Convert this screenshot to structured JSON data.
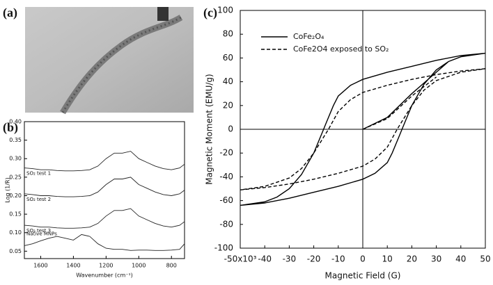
{
  "panel_labels": [
    "(a)",
    "(b)",
    "(c)"
  ],
  "chart_data": [
    {
      "type": "line",
      "x_label": "Wavenumber (cm⁻¹)",
      "y_label": "Log (1/R)",
      "x": [
        1700,
        1650,
        1600,
        1550,
        1500,
        1450,
        1400,
        1350,
        1300,
        1250,
        1200,
        1150,
        1100,
        1050,
        1000,
        950,
        900,
        850,
        800,
        750,
        720
      ],
      "xlim": [
        1700,
        720
      ],
      "xticks": [
        1600,
        1400,
        1200,
        1000,
        800
      ],
      "ylim": [
        0.03,
        0.4
      ],
      "yticks": [
        0.05,
        {
          "value": 0.1,
          "label": "0.10"
        },
        0.15,
        {
          "value": 0.2,
          "label": "0.20"
        },
        0.25,
        {
          "value": 0.3,
          "label": "0.30"
        },
        0.35,
        {
          "value": 0.4,
          "label": "0.40"
        }
      ],
      "series": [
        {
          "name": "SO₂ test 1",
          "color": "#222",
          "values": [
            0.275,
            0.273,
            0.27,
            0.27,
            0.268,
            0.267,
            0.267,
            0.268,
            0.27,
            0.28,
            0.3,
            0.315,
            0.315,
            0.32,
            0.3,
            0.29,
            0.28,
            0.273,
            0.27,
            0.275,
            0.285
          ]
        },
        {
          "name": "SO₂ test 2",
          "color": "#222",
          "values": [
            0.205,
            0.203,
            0.2,
            0.2,
            0.198,
            0.197,
            0.197,
            0.198,
            0.2,
            0.21,
            0.23,
            0.245,
            0.245,
            0.25,
            0.23,
            0.22,
            0.21,
            0.203,
            0.2,
            0.205,
            0.215
          ]
        },
        {
          "name": "SO₂ test 3",
          "color": "#222",
          "values": [
            0.12,
            0.118,
            0.115,
            0.115,
            0.113,
            0.112,
            0.112,
            0.113,
            0.115,
            0.125,
            0.145,
            0.16,
            0.16,
            0.165,
            0.145,
            0.135,
            0.125,
            0.118,
            0.115,
            0.12,
            0.13
          ]
        },
        {
          "name": "Native MNPs",
          "color": "#222",
          "values": [
            0.065,
            0.07,
            0.078,
            0.085,
            0.09,
            0.085,
            0.08,
            0.095,
            0.09,
            0.07,
            0.058,
            0.055,
            0.055,
            0.052,
            0.053,
            0.053,
            0.052,
            0.052,
            0.053,
            0.055,
            0.07
          ]
        }
      ]
    },
    {
      "type": "line",
      "x_label": "Magnetic Field (G)",
      "y_label": "Magnetic Moment (EMU/g)",
      "xlim": [
        -50000,
        50000
      ],
      "xticks": [
        {
          "value": -50000,
          "label": "-50x10³"
        },
        {
          "value": -40000,
          "label": "-40"
        },
        {
          "value": -30000,
          "label": "-30"
        },
        {
          "value": -20000,
          "label": "-20"
        },
        {
          "value": -10000,
          "label": "-10"
        },
        0,
        {
          "value": 10000,
          "label": "10"
        },
        {
          "value": 20000,
          "label": "20"
        },
        {
          "value": 30000,
          "label": "30"
        },
        {
          "value": 40000,
          "label": "40"
        },
        {
          "value": 50000,
          "label": "50"
        }
      ],
      "ylim": [
        -100,
        100
      ],
      "yticks": [
        -100,
        -80,
        -60,
        -40,
        -20,
        0,
        20,
        40,
        60,
        80,
        100
      ],
      "origin_lines": true,
      "legend": "upper left",
      "series": [
        {
          "name": "CoFe₂O₄",
          "color": "#000",
          "dash": false,
          "x": [
            0,
            10000,
            20000,
            30000,
            35000,
            null,
            50000,
            40000,
            30000,
            20000,
            10000,
            0,
            -5000,
            -10000,
            -12000,
            -15000,
            -16000,
            -20000,
            -25000,
            -30000,
            -35000,
            -40000,
            -50000,
            null,
            -50000,
            -40000,
            -30000,
            -20000,
            -10000,
            0,
            5000,
            10000,
            12000,
            15000,
            16000,
            20000,
            25000,
            30000,
            35000,
            40000,
            50000
          ],
          "values": [
            0,
            10,
            30,
            48,
            57,
            null,
            64,
            62,
            58,
            53,
            48,
            42,
            37,
            28,
            20,
            5,
            0,
            -20,
            -38,
            -50,
            -57,
            -61,
            -64,
            null,
            -64,
            -62,
            -58,
            -53,
            -48,
            -42,
            -37,
            -28,
            -20,
            -5,
            0,
            20,
            38,
            50,
            57,
            61,
            64
          ]
        },
        {
          "name": "CoFe2O4 exposed to SO₂",
          "color": "#000",
          "dash": true,
          "x": [
            0,
            10000,
            20000,
            30000,
            null,
            50000,
            40000,
            30000,
            20000,
            10000,
            0,
            -5000,
            -10000,
            -14000,
            -20000,
            -25000,
            -30000,
            -40000,
            -50000,
            null,
            -50000,
            -40000,
            -30000,
            -20000,
            -10000,
            0,
            5000,
            10000,
            14000,
            20000,
            25000,
            30000,
            40000,
            50000
          ],
          "values": [
            0,
            9,
            28,
            44,
            null,
            51,
            49,
            46,
            42,
            37,
            31,
            25,
            15,
            0,
            -20,
            -33,
            -41,
            -48,
            -51,
            null,
            -51,
            -49,
            -46,
            -42,
            -37,
            -31,
            -25,
            -15,
            0,
            20,
            33,
            41,
            48,
            51
          ]
        }
      ]
    }
  ]
}
